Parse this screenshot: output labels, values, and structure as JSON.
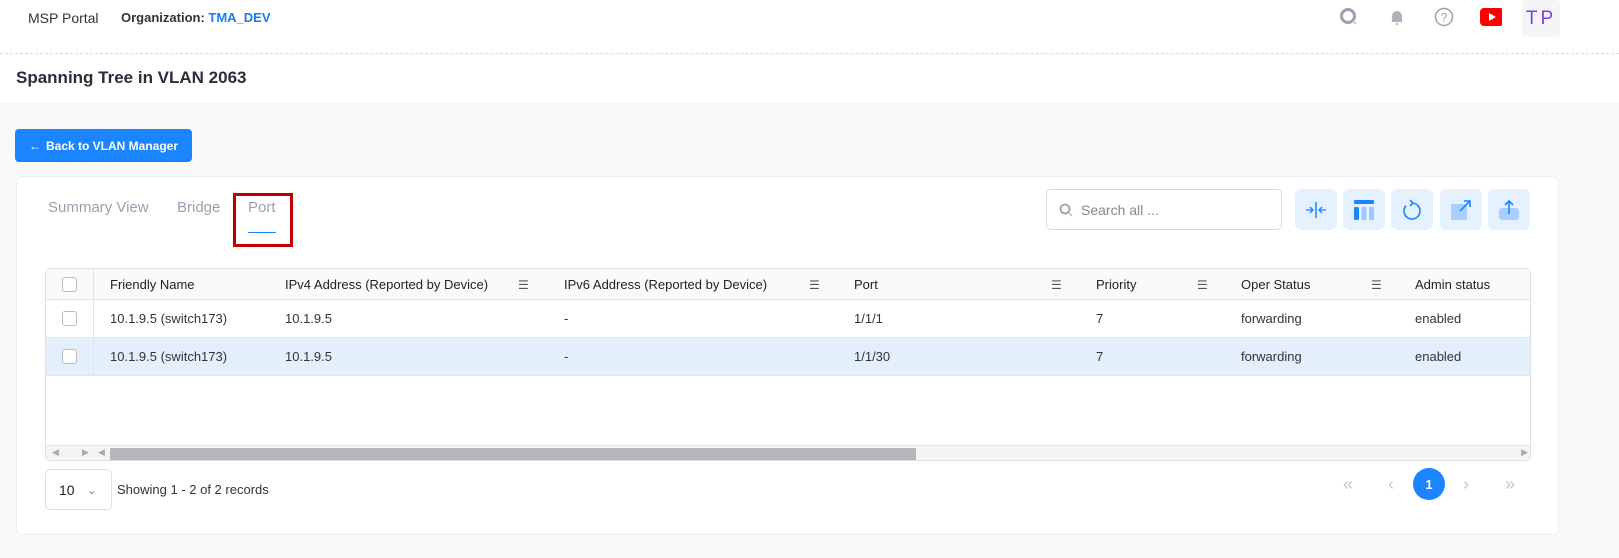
{
  "header": {
    "brand": "MSP Portal",
    "org_label": "Organization:",
    "org_value": "TMA_DEV",
    "avatar": "TP",
    "icons": [
      "search-icon",
      "bell-icon",
      "help-icon",
      "youtube-icon"
    ]
  },
  "page": {
    "title": "Spanning Tree in VLAN 2063",
    "back_label": "Back to VLAN Manager"
  },
  "tabs": [
    {
      "label": "Summary View"
    },
    {
      "label": "Bridge"
    },
    {
      "label": "Port",
      "active": true
    }
  ],
  "search": {
    "placeholder": "Search all ..."
  },
  "toolbar": [
    "collapse-columns-icon",
    "column-layout-icon",
    "refresh-icon",
    "open-external-icon",
    "export-icon"
  ],
  "table": {
    "columns": [
      "Friendly Name",
      "IPv4 Address (Reported by Device)",
      "IPv6 Address (Reported by Device)",
      "Port",
      "Priority",
      "Oper Status",
      "Admin status"
    ],
    "rows": [
      [
        "10.1.9.5 (switch173)",
        "10.1.9.5",
        "-",
        "1/1/1",
        "7",
        "forwarding",
        "enabled"
      ],
      [
        "10.1.9.5 (switch173)",
        "10.1.9.5",
        "-",
        "1/1/30",
        "7",
        "forwarding",
        "enabled"
      ]
    ]
  },
  "pagination": {
    "page_size": "10",
    "showing": "Showing 1 - 2 of 2 records",
    "current_page": "1"
  },
  "colors": {
    "accent": "#1a85ff",
    "highlight_row": "#e3f0fc",
    "tab_outline": "#c00000"
  }
}
